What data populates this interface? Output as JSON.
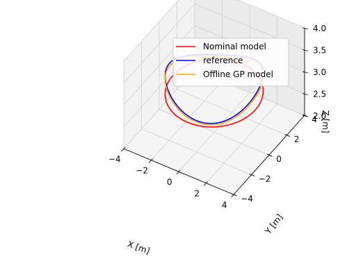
{
  "chart_data": {
    "type": "line",
    "projection": "3d",
    "xlabel": "X [m]",
    "ylabel": "Y [m]",
    "zlabel": "Z [m]",
    "xlim": [
      -4,
      4
    ],
    "ylim": [
      -4,
      4
    ],
    "zlim": [
      2,
      4
    ],
    "x_ticks": [
      -4,
      -2,
      0,
      2,
      4
    ],
    "x_tick_labels": [
      "−4",
      "−2",
      "0",
      "2",
      "4"
    ],
    "y_ticks": [
      -4,
      -2,
      0,
      2,
      4
    ],
    "y_tick_labels": [
      "−4",
      "−2",
      "0",
      "2",
      "4"
    ],
    "z_ticks": [
      2.0,
      2.5,
      3.0,
      3.5,
      4.0
    ],
    "z_tick_labels": [
      "2.0",
      "2.5",
      "3.0",
      "3.5",
      "4.0"
    ],
    "grid": true,
    "legend_position": "top-right",
    "series": [
      {
        "name": "Nominal model",
        "color": "#ff0000",
        "shape": "circle",
        "center": [
          0,
          0
        ],
        "radius": 3.0,
        "z": 2.9,
        "z_amplitude": 0.0
      },
      {
        "name": "reference",
        "color": "#0000ff",
        "shape": "circle",
        "center": [
          0,
          0
        ],
        "radius": 3.0,
        "z": 3.15,
        "z_amplitude": 0.17
      },
      {
        "name": "Offline GP model",
        "color": "#ffa500",
        "shape": "circle",
        "center": [
          0,
          0
        ],
        "radius": 3.0,
        "z": 3.1,
        "z_amplitude": 0.15
      }
    ]
  }
}
